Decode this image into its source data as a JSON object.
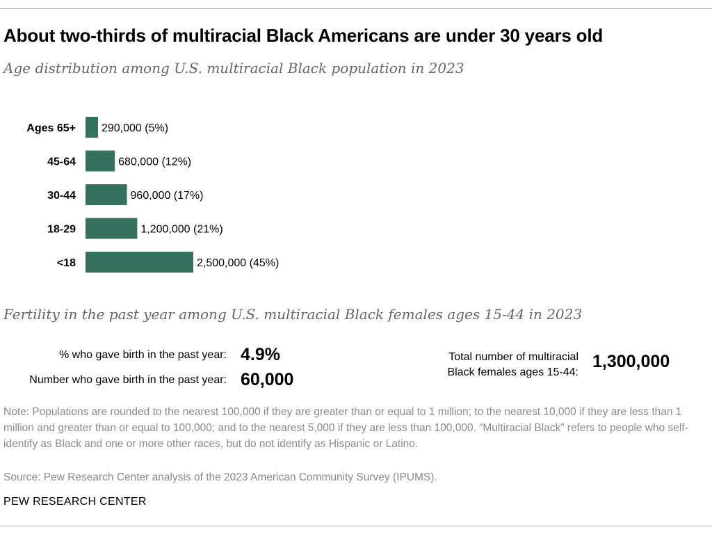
{
  "title": "About two-thirds of multiracial Black Americans are under 30 years old",
  "subtitle": "Age distribution among U.S. multiracial Black population in 2023",
  "chart_data": {
    "type": "bar",
    "orientation": "horizontal",
    "categories": [
      "Ages 65+",
      "45-64",
      "30-44",
      "18-29",
      "<18"
    ],
    "values": [
      290000,
      680000,
      960000,
      1200000,
      2500000
    ],
    "value_labels": [
      "290,000",
      "680,000",
      "960,000",
      "1,200,000",
      "2,500,000"
    ],
    "percent_labels": [
      "(5%)",
      "(12%)",
      "(17%)",
      "(21%)",
      "(45%)"
    ],
    "title": "Age distribution among U.S. multiracial Black population in 2023",
    "xlabel": "",
    "ylabel": "",
    "xlim": [
      0,
      2500000
    ],
    "color": "#36705f"
  },
  "fertility": {
    "heading": "Fertility in the past year among U.S. multiracial Black females ages 15-44 in 2023",
    "pct_label": "% who gave birth in the past year:",
    "pct_value": "4.9%",
    "num_label": "Number who gave birth in the past year:",
    "num_value": "60,000",
    "total_label_line1": "Total number of multiracial",
    "total_label_line2": "Black females ages 15-44:",
    "total_value": "1,300,000"
  },
  "note": "Note: Populations are rounded to the nearest 100,000 if they are greater than or equal to 1 million; to the nearest 10,000 if they are less than 1 million and greater than or equal to 100,000; and to the nearest 5,000 if they are less than 100,000. “Multiracial Black” refers to people who self-identify as Black and one or more other races, but do not identify as Hispanic or Latino.",
  "source": "Source: Pew Research Center analysis of the 2023 American Community Survey (IPUMS).",
  "brand": "PEW RESEARCH CENTER"
}
